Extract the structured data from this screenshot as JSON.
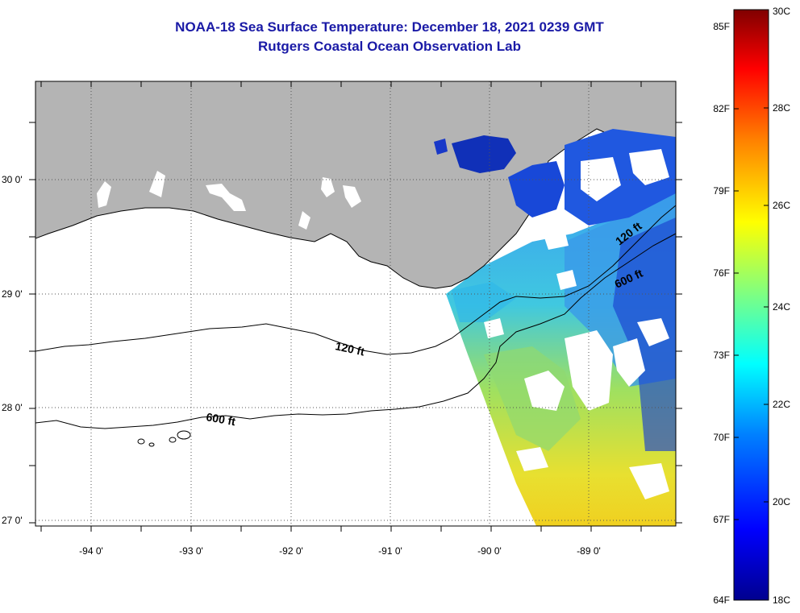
{
  "header": {
    "title": "NOAA-18 Sea Surface Temperature:  December 18, 2021 0239 GMT",
    "subtitle": "Rutgers Coastal Ocean Observation Lab"
  },
  "map": {
    "lat_labels": [
      "30 0'",
      "29 0'",
      "28 0'",
      "27 0'"
    ],
    "lon_labels": [
      "-94 0'",
      "-93 0'",
      "-92 0'",
      "-91 0'",
      "-90 0'",
      "-89 0'"
    ],
    "contours": [
      {
        "label": "120 ft",
        "depth_ft": 120
      },
      {
        "label": "600 ft",
        "depth_ft": 600
      }
    ],
    "colors": {
      "land": "#b4b4b4",
      "coast": "#000000",
      "grid": "#555555"
    }
  },
  "colorbar": {
    "fahrenheit_labels": [
      "85F",
      "82F",
      "79F",
      "76F",
      "73F",
      "70F",
      "67F",
      "64F"
    ],
    "celsius_labels": [
      "30C",
      "28C",
      "26C",
      "24C",
      "22C",
      "20C",
      "18C"
    ],
    "range_c": [
      18,
      30
    ],
    "colors": [
      "#00008f",
      "#0000ff",
      "#0080ff",
      "#00ffff",
      "#80ff80",
      "#ffff00",
      "#ff8000",
      "#ff0000",
      "#800000"
    ]
  }
}
